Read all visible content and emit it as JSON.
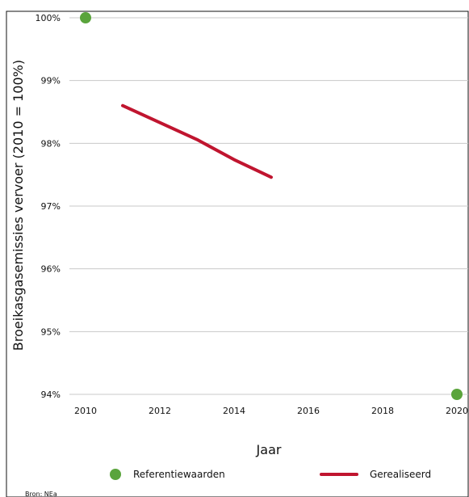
{
  "chart_data": {
    "type": "line",
    "xlabel": "Jaar",
    "ylabel": "Broeikasgasemissies vervoer (2010 = 100%)",
    "x_ticks": [
      "2010",
      "2012",
      "2014",
      "2016",
      "2018",
      "2020"
    ],
    "y_ticks": [
      "100%",
      "99%",
      "98%",
      "97%",
      "96%",
      "95%",
      "94%"
    ],
    "xlim": [
      2010,
      2020
    ],
    "ylim": [
      94,
      100
    ],
    "grid": "horizontal",
    "legend_position": "bottom",
    "source": "Bron: NEa",
    "series": [
      {
        "name": "Referentiewaarden",
        "kind": "scatter",
        "color": "#5aa43c",
        "points": [
          {
            "x": 2010,
            "y": 100
          },
          {
            "x": 2020,
            "y": 94
          }
        ]
      },
      {
        "name": "Gerealiseerd",
        "kind": "line",
        "color": "#c0152f",
        "points": [
          {
            "x": 2011,
            "y": 98.6
          },
          {
            "x": 2012,
            "y": 98.33
          },
          {
            "x": 2013,
            "y": 98.06
          },
          {
            "x": 2014,
            "y": 97.74
          },
          {
            "x": 2015,
            "y": 97.46
          }
        ]
      }
    ]
  }
}
